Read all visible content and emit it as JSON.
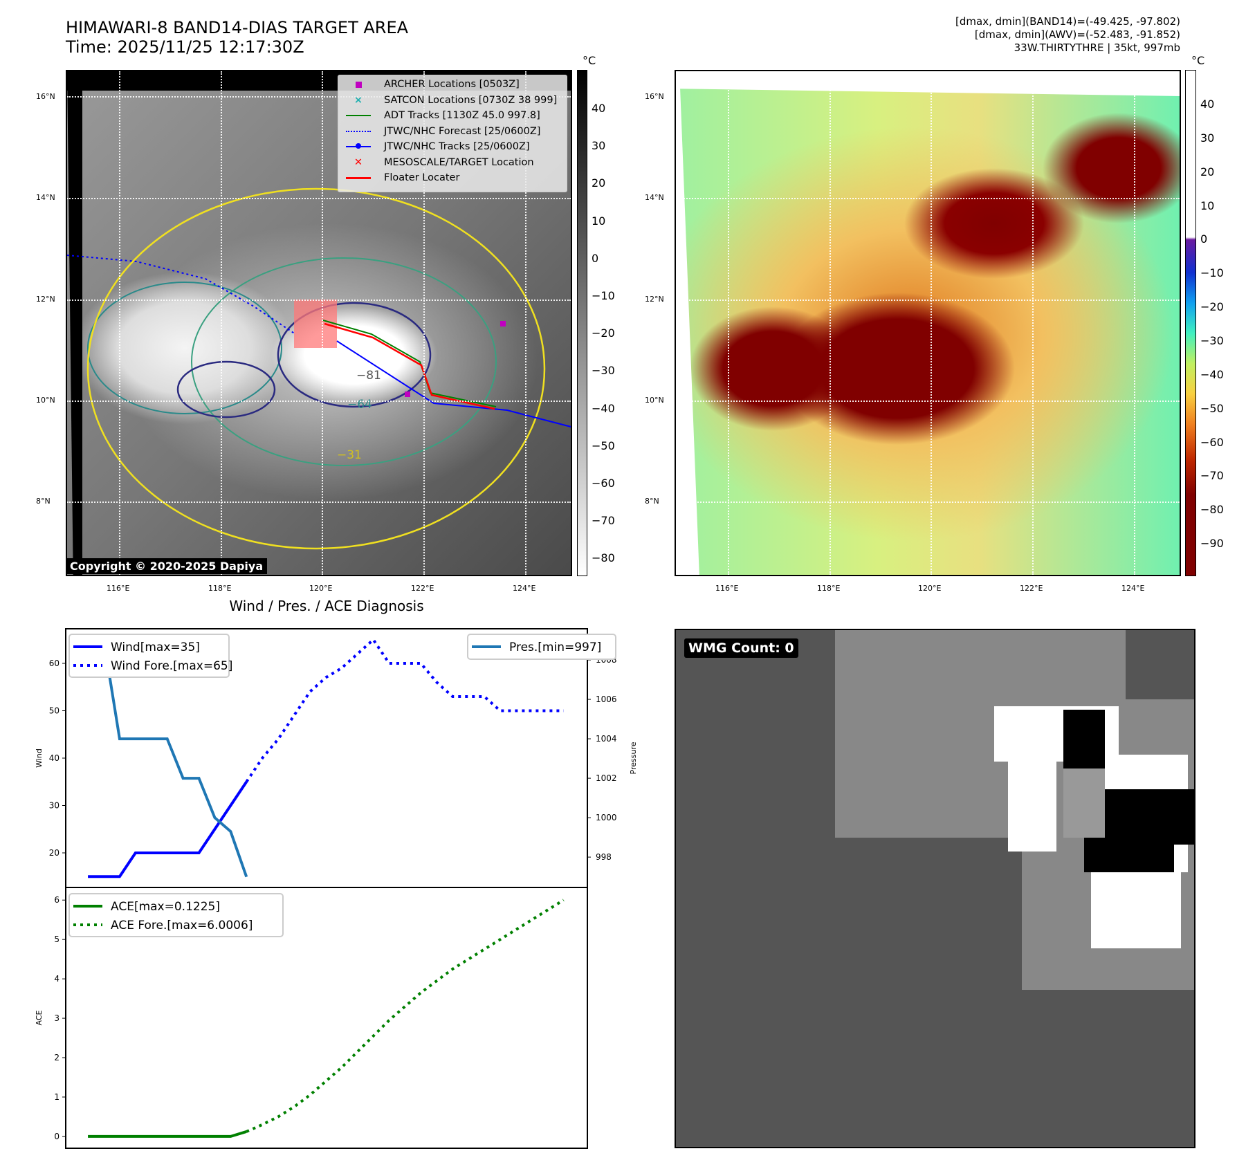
{
  "header": {
    "title_line1": "HIMAWARI-8 BAND14-DIAS TARGET AREA",
    "title_line2": "Time: 2025/11/25 12:17:30Z",
    "info_line1": "[dmax, dmin](BAND14)=(-49.425, -97.802)",
    "info_line2": "[dmax, dmin](AWV)=(-52.483, -91.852)",
    "info_line3": "33W.THIRTYTHRE | 35kt, 997mb"
  },
  "map": {
    "lat_labels": [
      "16°N",
      "14°N",
      "12°N",
      "10°N",
      "8°N"
    ],
    "lon_labels": [
      "116°E",
      "118°E",
      "120°E",
      "122°E",
      "124°E"
    ],
    "unit": "°C",
    "colorbar_left": [
      "40",
      "30",
      "20",
      "10",
      "0",
      "−10",
      "−20",
      "−30",
      "−40",
      "−50",
      "−60",
      "−70",
      "−80"
    ],
    "colorbar_right": [
      "40",
      "30",
      "20",
      "10",
      "0",
      "−10",
      "−20",
      "−30",
      "−40",
      "−50",
      "−60",
      "−70",
      "−80",
      "−90"
    ],
    "contour_labels": [
      "−81",
      "−64",
      "−31"
    ],
    "legend": [
      {
        "label": "ARCHER Locations [0503Z]",
        "color": "#c000c0"
      },
      {
        "label": "SATCON Locations [0730Z 38 999]",
        "color": "#20b0b0"
      },
      {
        "label": "ADT Tracks [1130Z 45.0 997.8]",
        "color": "#008000"
      },
      {
        "label": "JTWC/NHC Forecast [25/0600Z]",
        "color": "#0000ff"
      },
      {
        "label": "JTWC/NHC Tracks [25/0600Z]",
        "color": "#0000ff"
      },
      {
        "label": "MESOSCALE/TARGET Location",
        "color": "#ff0000"
      },
      {
        "label": "Floater Locater",
        "color": "#ff0000"
      }
    ],
    "copyright": "Copyright © 2020-2025 Dapiya"
  },
  "wmg": {
    "label": "WMG Count: 0"
  },
  "chart_data": [
    {
      "type": "line",
      "title": "Wind / Pres. / ACE Diagnosis",
      "ylabel": "Wind",
      "ylabel_right": "Pressure",
      "ylim": [
        12.7,
        67.3
      ],
      "ylim_right": [
        996.46,
        1009.58
      ],
      "xlim": [
        -1.4,
        31.5
      ],
      "yticks": [
        20,
        30,
        40,
        50,
        60
      ],
      "yticks_right": [
        998,
        1000,
        1002,
        1004,
        1006,
        1008
      ],
      "series": [
        {
          "name": "Wind[max=35]",
          "color": "#0000ff",
          "style": "solid",
          "axis": "left",
          "x": [
            0,
            2,
            3,
            7,
            8,
            10
          ],
          "y": [
            15,
            15,
            20,
            20,
            25,
            35
          ]
        },
        {
          "name": "Wind Fore.[max=65]",
          "color": "#0000ff",
          "style": "dotted",
          "axis": "left",
          "x": [
            10,
            11,
            12,
            13,
            14,
            15,
            16,
            17,
            18,
            19,
            20,
            21,
            22,
            23,
            24,
            25,
            26,
            27,
            28,
            29,
            30
          ],
          "y": [
            35,
            40,
            44,
            49,
            54,
            57,
            59,
            62,
            65,
            60,
            60,
            60,
            56,
            53,
            53,
            53,
            50,
            50,
            50,
            50,
            50
          ]
        },
        {
          "name": "Pres.[min=997]",
          "color": "#1f77b4",
          "style": "solid",
          "axis": "right",
          "x": [
            0,
            1,
            2,
            5,
            6,
            7,
            8,
            9,
            10
          ],
          "y": [
            1009,
            1009,
            1004,
            1004,
            1002,
            1002,
            1000,
            999.3,
            997
          ]
        }
      ]
    },
    {
      "type": "line",
      "ylabel": "ACE",
      "ylim": [
        -0.3,
        6.32
      ],
      "xlim": [
        -1.4,
        31.5
      ],
      "yticks": [
        0,
        1,
        2,
        3,
        4,
        5,
        6
      ],
      "series": [
        {
          "name": "ACE[max=0.1225]",
          "color": "#008000",
          "style": "solid",
          "x": [
            0,
            9,
            10
          ],
          "y": [
            0,
            0,
            0.1225
          ]
        },
        {
          "name": "ACE Fore.[max=6.0006]",
          "color": "#008000",
          "style": "dotted",
          "x": [
            10,
            11,
            12,
            13,
            14,
            15,
            16,
            17,
            18,
            19,
            20,
            21,
            22,
            23,
            24,
            25,
            26,
            27,
            28,
            29,
            30
          ],
          "y": [
            0.1225,
            0.3,
            0.5,
            0.75,
            1.05,
            1.4,
            1.75,
            2.15,
            2.55,
            2.95,
            3.3,
            3.65,
            3.95,
            4.25,
            4.5,
            4.75,
            5.0,
            5.25,
            5.5,
            5.75,
            6.0
          ]
        }
      ]
    }
  ]
}
